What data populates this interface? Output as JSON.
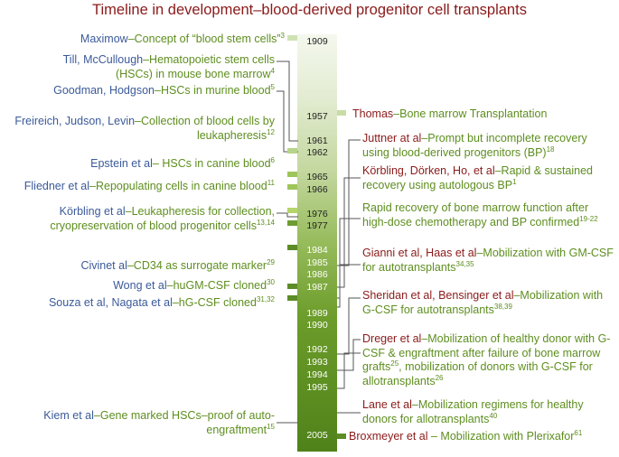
{
  "title": "Timeline in development–blood-derived progenitor cell transplants",
  "colors": {
    "name": "#3b5a9a",
    "event": "#5e8e1f",
    "highlight": "#8b1a1a"
  },
  "years": [
    "1909",
    "1957",
    "1961",
    "1962",
    "1965",
    "1966",
    "1976",
    "1977",
    "1984",
    "1985",
    "1986",
    "1987",
    "1989",
    "1990",
    "1992",
    "1993",
    "1994",
    "1995",
    "2005"
  ],
  "left": [
    {
      "name": "Maximow",
      "text": "–Concept of “blood stem cells”",
      "ref": "3"
    },
    {
      "name": "Till, McCullough",
      "text": "–Hematopoietic stem cells (HSCs) in mouse bone marrow",
      "ref": "4"
    },
    {
      "name": "Goodman, Hodgson",
      "text": "–HSCs in murine blood",
      "ref": "5"
    },
    {
      "name": "Freireich, Judson, Levin",
      "text": "–Collection of blood cells by leukapheresis",
      "ref": "12"
    },
    {
      "name": "Epstein et al",
      "text": "– HSCs in canine blood",
      "ref": "6"
    },
    {
      "name": "Fliedner et al",
      "text": "–Repopulating cells in canine blood",
      "ref": "11"
    },
    {
      "name": "Körbling et al",
      "text": "–Leukapheresis for collection, cryopreservation of blood progenitor cells",
      "ref": "13,14"
    },
    {
      "name": "Civinet al",
      "text": "–CD34 as surrogate marker",
      "ref": "29"
    },
    {
      "name": "Wong et al",
      "text": "–huGM-CSF cloned",
      "ref": "30"
    },
    {
      "name": "Souza et al, Nagata et al",
      "text": "–hG-CSF cloned",
      "ref": "31,32"
    },
    {
      "name": "Kiem et al",
      "text": "–Gene marked HSCs–proof of auto-engraftment",
      "ref": "15"
    }
  ],
  "right": [
    {
      "name": "Thomas",
      "text": "–Bone marrow Transplantation",
      "ref": ""
    },
    {
      "name": "Juttner at al",
      "text": "–Prompt but incomplete recovery using blood-derived progenitors (BP)",
      "ref": "18"
    },
    {
      "name": "Körbling, Dörken, Ho, et al",
      "text": "–Rapid & sustained recovery using autologous BP",
      "ref": "1"
    },
    {
      "name": "",
      "text": "Rapid recovery of bone marrow function after high-dose chemotherapy and BP confirmed",
      "ref": "19-22"
    },
    {
      "name": "Gianni et al, Haas et al",
      "text": "–Mobilization with GM-CSF for autotransplants",
      "ref": "34,35"
    },
    {
      "name": "Sheridan et al, Bensinger et al",
      "text": "–Mobilization with G-CSF for autotransplants",
      "ref": "38,39"
    },
    {
      "name": "Dreger et al",
      "text": "–Mobilization of healthy donor with G-CSF &  engraftment after failure of bone marrow grafts",
      "ref": "25",
      "text2": ", mobilization of donors with G-CSF for allotransplants",
      "ref2": "26"
    },
    {
      "name": "Lane et al",
      "text": "–Mobilization regimens for healthy donors for allotransplants",
      "ref": "40"
    },
    {
      "name": "Broxmeyer et al",
      "text": " – Mobilization with Plerixafor",
      "ref": "61"
    }
  ]
}
